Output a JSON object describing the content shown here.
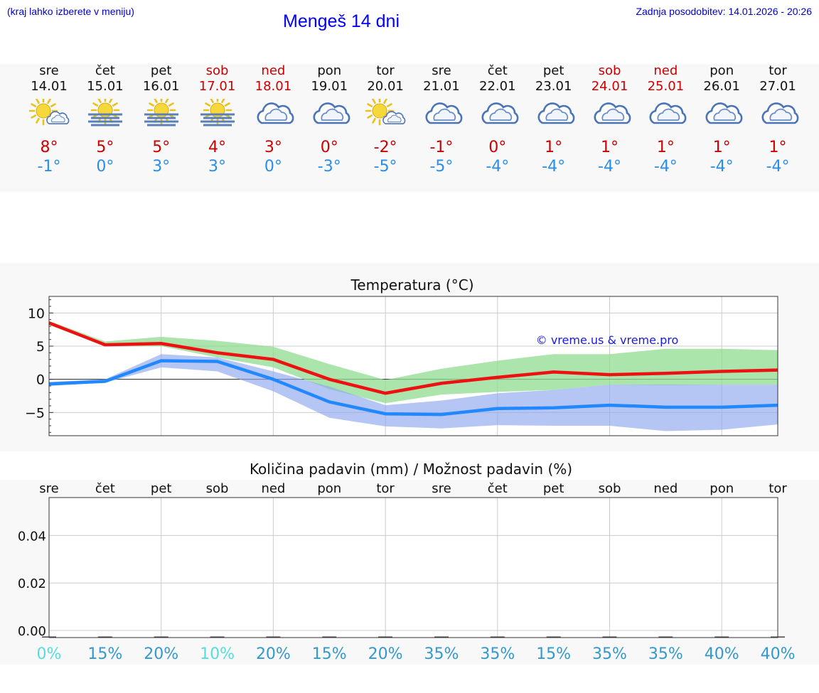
{
  "header": {
    "hint": "(kraj lahko izberete v meniju)",
    "title": "Mengeš 14 dni",
    "updated": "Zadnja posodobitev: 14.01.2026 - 20:26"
  },
  "days": [
    {
      "name": "sre",
      "date": "14.01",
      "icon": "sun-cloud",
      "tmax": "8°",
      "tmin": "-1°",
      "weekend": false,
      "precip": "0%"
    },
    {
      "name": "čet",
      "date": "15.01",
      "icon": "sun-fog",
      "tmax": "5°",
      "tmin": "0°",
      "weekend": false,
      "precip": "15%"
    },
    {
      "name": "pet",
      "date": "16.01",
      "icon": "sun-fog",
      "tmax": "5°",
      "tmin": "3°",
      "weekend": false,
      "precip": "20%"
    },
    {
      "name": "sob",
      "date": "17.01",
      "icon": "sun-fog",
      "tmax": "4°",
      "tmin": "3°",
      "weekend": true,
      "precip": "10%"
    },
    {
      "name": "ned",
      "date": "18.01",
      "icon": "cloud",
      "tmax": "3°",
      "tmin": "0°",
      "weekend": true,
      "precip": "20%"
    },
    {
      "name": "pon",
      "date": "19.01",
      "icon": "cloud",
      "tmax": "0°",
      "tmin": "-3°",
      "weekend": false,
      "precip": "15%"
    },
    {
      "name": "tor",
      "date": "20.01",
      "icon": "sun-cloud",
      "tmax": "-2°",
      "tmin": "-5°",
      "weekend": false,
      "precip": "20%"
    },
    {
      "name": "sre",
      "date": "21.01",
      "icon": "cloud",
      "tmax": "-1°",
      "tmin": "-5°",
      "weekend": false,
      "precip": "35%"
    },
    {
      "name": "čet",
      "date": "22.01",
      "icon": "cloud",
      "tmax": "0°",
      "tmin": "-4°",
      "weekend": false,
      "precip": "35%"
    },
    {
      "name": "pet",
      "date": "23.01",
      "icon": "cloud",
      "tmax": "1°",
      "tmin": "-4°",
      "weekend": false,
      "precip": "15%"
    },
    {
      "name": "sob",
      "date": "24.01",
      "icon": "cloud",
      "tmax": "1°",
      "tmin": "-4°",
      "weekend": true,
      "precip": "35%"
    },
    {
      "name": "ned",
      "date": "25.01",
      "icon": "cloud",
      "tmax": "1°",
      "tmin": "-4°",
      "weekend": true,
      "precip": "35%"
    },
    {
      "name": "pon",
      "date": "26.01",
      "icon": "cloud",
      "tmax": "1°",
      "tmin": "-4°",
      "weekend": false,
      "precip": "40%"
    },
    {
      "name": "tor",
      "date": "27.01",
      "icon": "cloud",
      "tmax": "1°",
      "tmin": "-4°",
      "weekend": false,
      "precip": "40%"
    }
  ],
  "colors": {
    "max_line": "#ee1111",
    "min_line": "#2288ff",
    "max_band": "#8fdc8f",
    "min_band": "#8ea8ee",
    "weekend": "#cc0000",
    "precip_low": "#55dddd",
    "precip_high": "#3399cc"
  },
  "chart_data": [
    {
      "type": "line",
      "title": "Temperatura (°C)",
      "watermark": "© vreme.us & vreme.pro",
      "x": [
        0,
        1,
        2,
        3,
        4,
        5,
        6,
        7,
        8,
        9,
        10,
        11,
        12,
        13
      ],
      "ylim": [
        -8.5,
        12.5
      ],
      "yticks": [
        10,
        5,
        0,
        -5
      ],
      "ytick_labels": [
        "10",
        "5",
        "0",
        "−5"
      ],
      "series": [
        {
          "name": "max",
          "values": [
            8.5,
            5.2,
            5.4,
            4.0,
            3.0,
            0.0,
            -2.1,
            -0.6,
            0.3,
            1.1,
            0.7,
            0.9,
            1.2,
            1.4
          ]
        },
        {
          "name": "min",
          "values": [
            -0.7,
            -0.3,
            2.8,
            2.7,
            0.0,
            -3.4,
            -5.2,
            -5.3,
            -4.4,
            -4.3,
            -3.9,
            -4.2,
            -4.2,
            -3.9
          ]
        }
      ],
      "bands": [
        {
          "name": "max-range",
          "low": [
            8.2,
            5.0,
            5.0,
            3.3,
            1.8,
            -1.5,
            -3.6,
            -2.3,
            -1.9,
            -1.6,
            -0.8,
            -0.9,
            -0.8,
            -0.8
          ],
          "high": [
            8.8,
            5.7,
            6.4,
            5.8,
            4.9,
            2.3,
            -0.1,
            1.6,
            2.8,
            3.8,
            3.8,
            4.6,
            4.6,
            4.4
          ]
        },
        {
          "name": "min-range",
          "low": [
            -1.0,
            -0.5,
            1.8,
            1.2,
            -1.8,
            -5.8,
            -7.1,
            -7.4,
            -6.9,
            -7.0,
            -7.0,
            -7.8,
            -7.6,
            -6.8
          ],
          "high": [
            -0.4,
            0.0,
            3.8,
            3.3,
            1.2,
            -1.1,
            -3.9,
            -3.2,
            -2.1,
            -1.6,
            -0.8,
            -0.8,
            -0.8,
            -0.8
          ]
        }
      ]
    },
    {
      "type": "bar",
      "title": "Količina padavin (mm) / Možnost padavin (%)",
      "categories": [
        "sre",
        "čet",
        "pet",
        "sob",
        "ned",
        "pon",
        "tor",
        "sre",
        "čet",
        "pet",
        "sob",
        "ned",
        "pon",
        "tor"
      ],
      "values": [
        0,
        0,
        0,
        0,
        0,
        0,
        0,
        0,
        0,
        0,
        0,
        0,
        0,
        0
      ],
      "ylim": [
        -0.003,
        0.056
      ],
      "yticks": [
        0.0,
        0.02,
        0.04
      ],
      "ytick_labels": [
        "0.00",
        "0.02",
        "0.04"
      ],
      "probability": [
        "0%",
        "15%",
        "20%",
        "10%",
        "20%",
        "15%",
        "20%",
        "35%",
        "35%",
        "15%",
        "35%",
        "35%",
        "40%",
        "40%"
      ]
    }
  ]
}
